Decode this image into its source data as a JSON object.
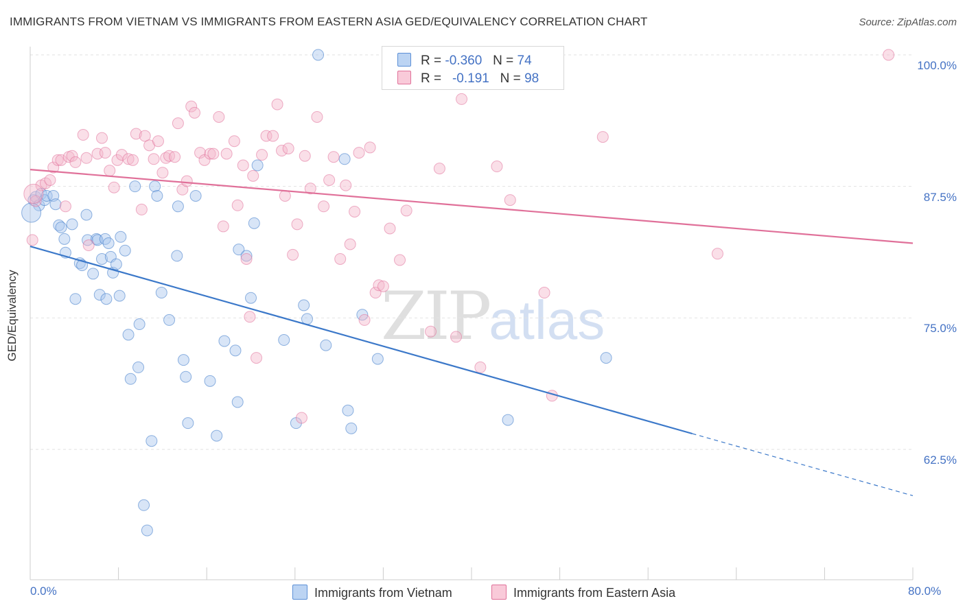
{
  "header": {
    "title": "IMMIGRANTS FROM VIETNAM VS IMMIGRANTS FROM EASTERN ASIA GED/EQUIVALENCY CORRELATION CHART",
    "source": "Source: ZipAtlas.com"
  },
  "watermark": {
    "zip": "ZIP",
    "atlas": "atlas"
  },
  "legend": {
    "vietnam": {
      "r_label": "R =",
      "r_value": "-0.360",
      "n_label": "N =",
      "n_value": "74"
    },
    "eastasia": {
      "r_label": "R =",
      "r_value": "-0.191",
      "n_label": "N =",
      "n_value": "98"
    }
  },
  "bottom_legend": {
    "vietnam": "Immigrants from Vietnam",
    "eastasia": "Immigrants from Eastern Asia"
  },
  "chart_data": {
    "type": "scatter",
    "title": "IMMIGRANTS FROM VIETNAM VS IMMIGRANTS FROM EASTERN ASIA GED/EQUIVALENCY CORRELATION CHART",
    "xlabel": "",
    "ylabel": "GED/Equivalency",
    "xlim": [
      0,
      80
    ],
    "ylim": [
      50,
      100
    ],
    "x_tick_labels": [
      "0.0%",
      "80.0%"
    ],
    "y_ticks": [
      62.5,
      75.0,
      87.5,
      100.0
    ],
    "y_tick_labels": [
      "62.5%",
      "75.0%",
      "87.5%",
      "100.0%"
    ],
    "grid": true,
    "colors": {
      "vietnam": "#3b78c9",
      "eastasia": "#e07099",
      "vietnam_fill": "#a8c6ee",
      "eastasia_fill": "#f5b8cc"
    },
    "series": [
      {
        "name": "Immigrants from Vietnam",
        "key": "vietnam",
        "trend": {
          "x0": 0,
          "y0": 81.8,
          "x1": 60,
          "y1": 64.0,
          "x_dash_end": 80,
          "y_dash_end": 58.1
        },
        "points": [
          [
            0.3,
            86.2
          ],
          [
            0.5,
            86.5
          ],
          [
            0.8,
            85.7
          ],
          [
            1.0,
            86.8
          ],
          [
            1.3,
            86.2
          ],
          [
            1.5,
            86.6
          ],
          [
            2.1,
            86.6
          ],
          [
            2.3,
            85.8
          ],
          [
            2.6,
            83.8
          ],
          [
            2.8,
            83.6
          ],
          [
            3.1,
            82.5
          ],
          [
            3.2,
            81.2
          ],
          [
            3.8,
            83.9
          ],
          [
            4.5,
            80.2
          ],
          [
            4.7,
            80.0
          ],
          [
            5.1,
            84.8
          ],
          [
            5.2,
            82.4
          ],
          [
            5.7,
            79.2
          ],
          [
            6.0,
            82.5
          ],
          [
            6.1,
            82.4
          ],
          [
            4.1,
            76.8
          ],
          [
            6.3,
            77.2
          ],
          [
            6.5,
            80.6
          ],
          [
            6.8,
            82.5
          ],
          [
            6.9,
            76.8
          ],
          [
            7.1,
            82.1
          ],
          [
            7.3,
            80.8
          ],
          [
            7.5,
            79.3
          ],
          [
            7.8,
            80.1
          ],
          [
            8.1,
            77.1
          ],
          [
            8.2,
            82.7
          ],
          [
            8.6,
            81.4
          ],
          [
            8.9,
            73.4
          ],
          [
            9.1,
            69.2
          ],
          [
            9.5,
            87.5
          ],
          [
            9.8,
            70.3
          ],
          [
            9.9,
            74.4
          ],
          [
            10.3,
            57.2
          ],
          [
            10.6,
            54.8
          ],
          [
            11.0,
            63.3
          ],
          [
            11.3,
            87.5
          ],
          [
            11.5,
            86.6
          ],
          [
            11.9,
            77.4
          ],
          [
            12.6,
            74.8
          ],
          [
            13.3,
            80.9
          ],
          [
            13.4,
            85.6
          ],
          [
            13.9,
            71.0
          ],
          [
            14.1,
            69.4
          ],
          [
            14.3,
            65.0
          ],
          [
            15.0,
            86.6
          ],
          [
            16.3,
            69.0
          ],
          [
            16.9,
            63.8
          ],
          [
            17.6,
            72.8
          ],
          [
            18.6,
            71.9
          ],
          [
            18.9,
            81.5
          ],
          [
            18.8,
            67.0
          ],
          [
            19.6,
            80.9
          ],
          [
            20.0,
            76.9
          ],
          [
            20.3,
            84.0
          ],
          [
            20.6,
            89.5
          ],
          [
            23.0,
            72.9
          ],
          [
            24.1,
            65.0
          ],
          [
            24.8,
            76.2
          ],
          [
            25.1,
            74.9
          ],
          [
            26.1,
            100.0
          ],
          [
            26.8,
            72.4
          ],
          [
            28.5,
            90.1
          ],
          [
            28.8,
            66.2
          ],
          [
            29.1,
            64.5
          ],
          [
            30.1,
            75.3
          ],
          [
            31.5,
            71.1
          ],
          [
            43.3,
            65.3
          ],
          [
            52.2,
            71.2
          ],
          [
            0.1,
            85.0
          ]
        ]
      },
      {
        "name": "Immigrants from Eastern Asia",
        "key": "eastasia",
        "trend": {
          "x0": 0,
          "y0": 89.1,
          "x1": 80,
          "y1": 82.1
        },
        "points": [
          [
            0.2,
            82.4
          ],
          [
            0.5,
            86.1
          ],
          [
            1.0,
            87.6
          ],
          [
            1.4,
            87.8
          ],
          [
            1.8,
            88.1
          ],
          [
            2.1,
            89.3
          ],
          [
            2.5,
            90.0
          ],
          [
            2.8,
            90.0
          ],
          [
            3.2,
            85.6
          ],
          [
            3.5,
            90.3
          ],
          [
            3.8,
            90.4
          ],
          [
            4.1,
            89.8
          ],
          [
            4.8,
            92.4
          ],
          [
            5.1,
            90.2
          ],
          [
            5.3,
            81.9
          ],
          [
            6.1,
            90.6
          ],
          [
            6.5,
            92.1
          ],
          [
            6.8,
            90.7
          ],
          [
            7.2,
            89.0
          ],
          [
            7.6,
            87.4
          ],
          [
            7.9,
            90.0
          ],
          [
            8.3,
            90.5
          ],
          [
            8.9,
            90.1
          ],
          [
            9.3,
            90.0
          ],
          [
            9.6,
            92.5
          ],
          [
            10.1,
            85.3
          ],
          [
            10.4,
            92.3
          ],
          [
            10.8,
            91.4
          ],
          [
            11.2,
            90.1
          ],
          [
            11.6,
            91.8
          ],
          [
            12.0,
            88.8
          ],
          [
            12.3,
            90.2
          ],
          [
            12.6,
            90.4
          ],
          [
            13.1,
            90.3
          ],
          [
            13.4,
            93.5
          ],
          [
            13.8,
            87.2
          ],
          [
            14.2,
            88.0
          ],
          [
            14.6,
            95.1
          ],
          [
            14.9,
            94.5
          ],
          [
            15.4,
            90.7
          ],
          [
            15.8,
            90.0
          ],
          [
            16.3,
            90.6
          ],
          [
            16.6,
            90.6
          ],
          [
            17.1,
            94.1
          ],
          [
            17.5,
            83.7
          ],
          [
            17.8,
            90.6
          ],
          [
            18.5,
            91.8
          ],
          [
            18.8,
            85.7
          ],
          [
            19.3,
            89.5
          ],
          [
            19.6,
            80.6
          ],
          [
            19.9,
            75.1
          ],
          [
            20.2,
            88.5
          ],
          [
            20.5,
            71.2
          ],
          [
            21.0,
            90.5
          ],
          [
            21.4,
            92.3
          ],
          [
            22.0,
            92.3
          ],
          [
            22.4,
            95.3
          ],
          [
            22.8,
            90.9
          ],
          [
            23.1,
            86.6
          ],
          [
            23.4,
            91.1
          ],
          [
            23.8,
            81.0
          ],
          [
            24.2,
            83.9
          ],
          [
            24.6,
            65.5
          ],
          [
            24.9,
            90.4
          ],
          [
            25.4,
            87.3
          ],
          [
            26.0,
            94.1
          ],
          [
            26.6,
            85.6
          ],
          [
            27.1,
            88.1
          ],
          [
            27.5,
            90.3
          ],
          [
            28.1,
            80.6
          ],
          [
            28.6,
            87.6
          ],
          [
            29.0,
            82.0
          ],
          [
            29.4,
            85.1
          ],
          [
            29.8,
            90.7
          ],
          [
            30.3,
            74.8
          ],
          [
            30.8,
            91.2
          ],
          [
            31.3,
            77.4
          ],
          [
            31.6,
            78.1
          ],
          [
            32.0,
            78.0
          ],
          [
            32.6,
            83.5
          ],
          [
            33.5,
            80.5
          ],
          [
            34.1,
            85.2
          ],
          [
            36.3,
            73.7
          ],
          [
            37.1,
            89.2
          ],
          [
            38.1,
            100.0
          ],
          [
            38.6,
            73.2
          ],
          [
            39.1,
            95.8
          ],
          [
            40.1,
            100.0
          ],
          [
            40.8,
            70.3
          ],
          [
            42.3,
            89.4
          ],
          [
            42.8,
            100.0
          ],
          [
            43.5,
            86.2
          ],
          [
            46.6,
            77.4
          ],
          [
            47.3,
            67.6
          ],
          [
            51.9,
            92.2
          ],
          [
            62.3,
            81.1
          ],
          [
            77.8,
            100.0
          ],
          [
            0.3,
            86.8
          ]
        ]
      }
    ]
  }
}
